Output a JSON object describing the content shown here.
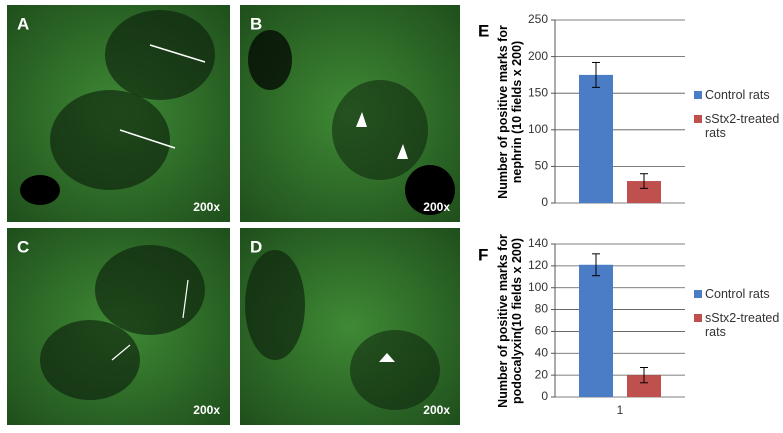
{
  "panels": [
    {
      "label": "A",
      "magnification": "200x"
    },
    {
      "label": "B",
      "magnification": "200x"
    },
    {
      "label": "C",
      "magnification": "200x"
    },
    {
      "label": "D",
      "magnification": "200x"
    }
  ],
  "chart_data": [
    {
      "type": "bar",
      "panel_label": "E",
      "ylabel": "Number of positive marks for nephrin (10 fields x 200)",
      "categories": [
        null
      ],
      "series": [
        {
          "name": "Control rats",
          "color": "#4a7dc6",
          "values": [
            175
          ],
          "errors": [
            17
          ]
        },
        {
          "name": "sStx2-treated rats",
          "color": "#c0504d",
          "values": [
            30
          ],
          "errors": [
            10
          ]
        }
      ],
      "ylim": [
        0,
        250
      ],
      "yticks": [
        0,
        50,
        100,
        150,
        200,
        250
      ],
      "grid": true
    },
    {
      "type": "bar",
      "panel_label": "F",
      "ylabel": "Number of positive marks for podocalyxin(10 fields x 200)",
      "categories": [
        "1"
      ],
      "series": [
        {
          "name": "Control rats",
          "color": "#4a7dc6",
          "values": [
            121
          ],
          "errors": [
            10
          ]
        },
        {
          "name": "sStx2-treated rats",
          "color": "#c0504d",
          "values": [
            20
          ],
          "errors": [
            7
          ]
        }
      ],
      "ylim": [
        0,
        140
      ],
      "yticks": [
        0,
        20,
        40,
        60,
        80,
        100,
        120,
        140
      ],
      "grid": true
    }
  ]
}
